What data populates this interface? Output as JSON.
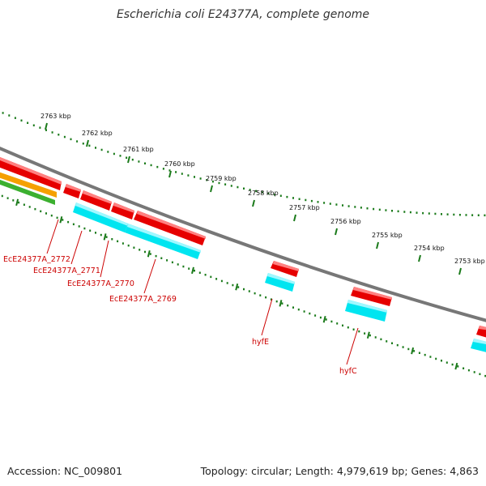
{
  "title": "Escherichia coli E24377A, complete genome",
  "footer": {
    "accession": "Accession: NC_009801",
    "summary": "Topology: circular; Length: 4,979,619 bp; Genes: 4,863"
  },
  "scale": {
    "tick_labels": [
      "2763 kbp",
      "2762 kbp",
      "2761 kbp",
      "2760 kbp",
      "2759 kbp",
      "2758 kbp",
      "2757 kbp",
      "2756 kbp",
      "2755 kbp",
      "2754 kbp",
      "2753 kbp"
    ]
  },
  "genes": [
    {
      "name": "EcE24377A_2772"
    },
    {
      "name": "EcE24377A_2771"
    },
    {
      "name": "EcE24377A_2770"
    },
    {
      "name": "EcE24377A_2769"
    },
    {
      "name": "hyfE"
    },
    {
      "name": "hyfC"
    }
  ],
  "colors": {
    "backbone": "#808080",
    "ruler_ticks": "#1a7a1a",
    "cds_forward": "#ee0000",
    "gene_cyan": "#00e5f0",
    "feature_orange": "#f5a000",
    "feature_green": "#3cb030",
    "label": "#cc0000"
  }
}
